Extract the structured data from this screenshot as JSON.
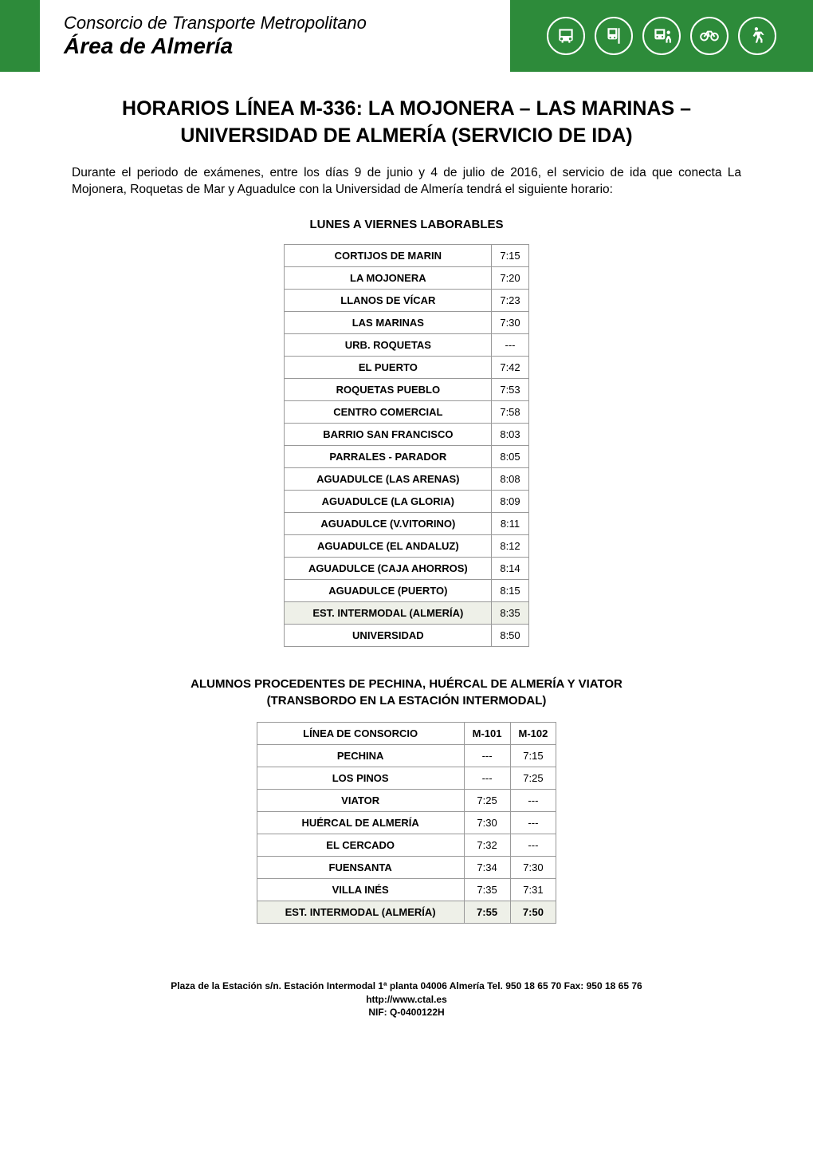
{
  "header": {
    "org_line1": "Consorcio de Transporte Metropolitano",
    "org_line2": "Área de Almería",
    "colors": {
      "green": "#2d8b3a",
      "white": "#ffffff"
    },
    "icons": [
      "bus-icon",
      "bus-stop-icon",
      "bus-board-icon",
      "bike-icon",
      "walk-icon"
    ]
  },
  "title": "HORARIOS LÍNEA M-336: LA MOJONERA – LAS MARINAS – UNIVERSIDAD DE ALMERÍA (SERVICIO DE IDA)",
  "intro": "Durante el periodo de exámenes, entre los días 9 de junio y 4 de julio de 2016, el servicio de ida que conecta La Mojonera, Roquetas de Mar y Aguadulce con la Universidad de Almería tendrá el siguiente horario:",
  "section1_heading": "LUNES A VIERNES LABORABLES",
  "table1": {
    "rows": [
      {
        "stop": "CORTIJOS DE MARIN",
        "time": "7:15",
        "highlight": false
      },
      {
        "stop": "LA MOJONERA",
        "time": "7:20",
        "highlight": false
      },
      {
        "stop": "LLANOS DE VÍCAR",
        "time": "7:23",
        "highlight": false
      },
      {
        "stop": "LAS MARINAS",
        "time": "7:30",
        "highlight": false
      },
      {
        "stop": "URB. ROQUETAS",
        "time": "---",
        "highlight": false
      },
      {
        "stop": "EL PUERTO",
        "time": "7:42",
        "highlight": false
      },
      {
        "stop": "ROQUETAS PUEBLO",
        "time": "7:53",
        "highlight": false
      },
      {
        "stop": "CENTRO COMERCIAL",
        "time": "7:58",
        "highlight": false
      },
      {
        "stop": "BARRIO SAN FRANCISCO",
        "time": "8:03",
        "highlight": false
      },
      {
        "stop": "PARRALES - PARADOR",
        "time": "8:05",
        "highlight": false
      },
      {
        "stop": "AGUADULCE (LAS ARENAS)",
        "time": "8:08",
        "highlight": false
      },
      {
        "stop": "AGUADULCE (LA GLORIA)",
        "time": "8:09",
        "highlight": false
      },
      {
        "stop": "AGUADULCE (V.VITORINO)",
        "time": "8:11",
        "highlight": false
      },
      {
        "stop": "AGUADULCE (EL ANDALUZ)",
        "time": "8:12",
        "highlight": false
      },
      {
        "stop": "AGUADULCE (CAJA AHORROS)",
        "time": "8:14",
        "highlight": false
      },
      {
        "stop": "AGUADULCE (PUERTO)",
        "time": "8:15",
        "highlight": false
      },
      {
        "stop": "EST. INTERMODAL (ALMERÍA)",
        "time": "8:35",
        "highlight": true
      },
      {
        "stop": "UNIVERSIDAD",
        "time": "8:50",
        "highlight": false
      }
    ]
  },
  "section2_heading_line1": "ALUMNOS PROCEDENTES DE PECHINA, HUÉRCAL DE ALMERÍA Y VIATOR",
  "section2_heading_line2": "(TRANSBORDO EN LA ESTACIÓN INTERMODAL)",
  "table2": {
    "header": {
      "col1": "LÍNEA DE CONSORCIO",
      "col2": "M-101",
      "col3": "M-102"
    },
    "rows": [
      {
        "stop": "PECHINA",
        "t1": "---",
        "t2": "7:15",
        "bold": false,
        "highlight": false
      },
      {
        "stop": "LOS PINOS",
        "t1": "---",
        "t2": "7:25",
        "bold": false,
        "highlight": false
      },
      {
        "stop": "VIATOR",
        "t1": "7:25",
        "t2": "---",
        "bold": false,
        "highlight": false
      },
      {
        "stop": "HUÉRCAL DE ALMERÍA",
        "t1": "7:30",
        "t2": "---",
        "bold": false,
        "highlight": false
      },
      {
        "stop": "EL CERCADO",
        "t1": "7:32",
        "t2": "---",
        "bold": false,
        "highlight": false
      },
      {
        "stop": "FUENSANTA",
        "t1": "7:34",
        "t2": "7:30",
        "bold": false,
        "highlight": false
      },
      {
        "stop": "VILLA INÉS",
        "t1": "7:35",
        "t2": "7:31",
        "bold": false,
        "highlight": false
      },
      {
        "stop": "EST. INTERMODAL (ALMERÍA)",
        "t1": "7:55",
        "t2": "7:50",
        "bold": true,
        "highlight": true
      }
    ]
  },
  "footer": {
    "line1": "Plaza de la Estación s/n. Estación Intermodal 1ª planta 04006 Almería Tel. 950 18 65 70 Fax: 950 18 65 76",
    "line2": "http://www.ctal.es",
    "line3": "NIF: Q-0400122H"
  }
}
